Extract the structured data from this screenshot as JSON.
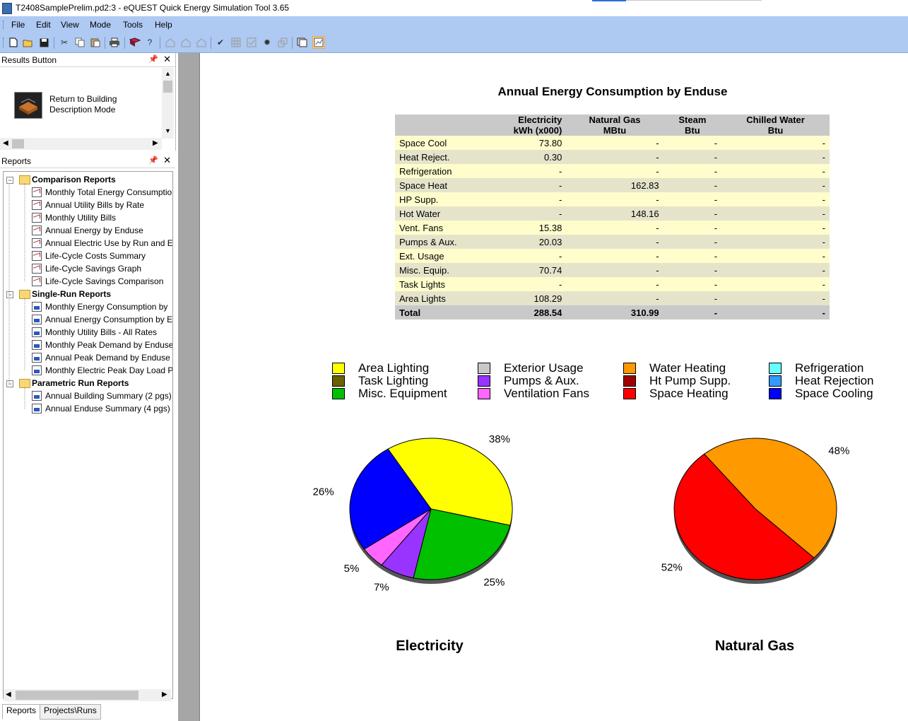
{
  "window": {
    "title": "T2408SamplePrelim.pd2:3 - eQUEST Quick Energy Simulation Tool 3.65"
  },
  "menu": [
    "File",
    "Edit",
    "View",
    "Mode",
    "Tools",
    "Help"
  ],
  "toolbar_icons": [
    "new-icon",
    "open-icon",
    "save-icon",
    "cut-icon",
    "copy-icon",
    "paste-icon",
    "print-icon",
    "book-icon",
    "help-icon",
    "wizard1-icon",
    "wizard2-icon",
    "wizard3-icon",
    "check-icon",
    "grid-icon",
    "checklist-icon",
    "gear-icon",
    "windows-icon",
    "reports-icon",
    "results-icon"
  ],
  "results_panel": {
    "title": "Results Button",
    "button_label": "Return to Building Description Mode"
  },
  "reports_panel": {
    "title": "Reports",
    "groups": [
      {
        "label": "Comparison Reports",
        "items": [
          "Monthly Total Energy Consumptio",
          "Annual Utility Bills by Rate",
          "Monthly Utility Bills",
          "Annual Energy by Enduse",
          "Annual Electric Use by Run and Er",
          "Life-Cycle Costs Summary",
          "Life-Cycle Savings Graph",
          "Life-Cycle Savings Comparison"
        ]
      },
      {
        "label": "Single-Run Reports",
        "items": [
          "Monthly Energy Consumption by",
          "Annual Energy Consumption by E",
          "Monthly Utility Bills - All Rates",
          "Monthly Peak Demand by Enduse",
          "Annual Peak Demand by Enduse",
          "Monthly Electric Peak Day Load P"
        ]
      },
      {
        "label": "Parametric Run Reports",
        "items": [
          "Annual Building Summary (2 pgs)",
          "Annual Enduse Summary (4 pgs)"
        ]
      }
    ],
    "tabs": [
      "Reports",
      "Projects\\Runs"
    ]
  },
  "report": {
    "title": "Annual Energy Consumption by Enduse",
    "columns": [
      {
        "name": "Electricity",
        "unit": "kWh (x000)"
      },
      {
        "name": "Natural Gas",
        "unit": "MBtu"
      },
      {
        "name": "Steam",
        "unit": "Btu"
      },
      {
        "name": "Chilled Water",
        "unit": "Btu"
      }
    ],
    "rows": [
      {
        "label": "Space Cool",
        "values": [
          "73.80",
          "-",
          "-",
          "-"
        ]
      },
      {
        "label": "Heat Reject.",
        "values": [
          "0.30",
          "-",
          "-",
          "-"
        ]
      },
      {
        "label": "Refrigeration",
        "values": [
          "-",
          "-",
          "-",
          "-"
        ]
      },
      {
        "label": "Space Heat",
        "values": [
          "-",
          "162.83",
          "-",
          "-"
        ]
      },
      {
        "label": "HP Supp.",
        "values": [
          "-",
          "-",
          "-",
          "-"
        ]
      },
      {
        "label": "Hot Water",
        "values": [
          "-",
          "148.16",
          "-",
          "-"
        ]
      },
      {
        "label": "Vent. Fans",
        "values": [
          "15.38",
          "-",
          "-",
          "-"
        ]
      },
      {
        "label": "Pumps & Aux.",
        "values": [
          "20.03",
          "-",
          "-",
          "-"
        ]
      },
      {
        "label": "Ext. Usage",
        "values": [
          "-",
          "-",
          "-",
          "-"
        ]
      },
      {
        "label": "Misc. Equip.",
        "values": [
          "70.74",
          "-",
          "-",
          "-"
        ]
      },
      {
        "label": "Task Lights",
        "values": [
          "-",
          "-",
          "-",
          "-"
        ]
      },
      {
        "label": "Area Lights",
        "values": [
          "108.29",
          "-",
          "-",
          "-"
        ]
      }
    ],
    "total": {
      "label": "Total",
      "values": [
        "288.54",
        "310.99",
        "-",
        "-"
      ]
    }
  },
  "legend": [
    {
      "label": "Area Lighting",
      "color": "#ffff00"
    },
    {
      "label": "Task Lighting",
      "color": "#6b6100"
    },
    {
      "label": "Misc. Equipment",
      "color": "#00c000"
    },
    {
      "label": "Exterior Usage",
      "color": "#c8c8c8"
    },
    {
      "label": "Pumps & Aux.",
      "color": "#9933ff"
    },
    {
      "label": "Ventilation Fans",
      "color": "#ff66ff"
    },
    {
      "label": "Water Heating",
      "color": "#ff9900"
    },
    {
      "label": "Ht Pump Supp.",
      "color": "#a00000"
    },
    {
      "label": "Space Heating",
      "color": "#ff0000"
    },
    {
      "label": "Refrigeration",
      "color": "#66ffff"
    },
    {
      "label": "Heat Rejection",
      "color": "#3399ff"
    },
    {
      "label": "Space Cooling",
      "color": "#0000ff"
    }
  ],
  "chart_data": [
    {
      "type": "pie",
      "title": "Electricity",
      "slices": [
        {
          "label": "Area Lighting",
          "value": 38,
          "display": "38%",
          "color": "#ffff00"
        },
        {
          "label": "Misc. Equipment",
          "value": 25,
          "display": "25%",
          "color": "#00c000"
        },
        {
          "label": "Pumps & Aux.",
          "value": 7,
          "display": "7%",
          "color": "#9933ff"
        },
        {
          "label": "Ventilation Fans",
          "value": 5,
          "display": "5%",
          "color": "#ff66ff"
        },
        {
          "label": "Space Cooling",
          "value": 26,
          "display": "26%",
          "color": "#0000ff"
        }
      ]
    },
    {
      "type": "pie",
      "title": "Natural Gas",
      "slices": [
        {
          "label": "Water Heating",
          "value": 48,
          "display": "48%",
          "color": "#ff9900"
        },
        {
          "label": "Space Heating",
          "value": 52,
          "display": "52%",
          "color": "#ff0000"
        }
      ]
    }
  ]
}
